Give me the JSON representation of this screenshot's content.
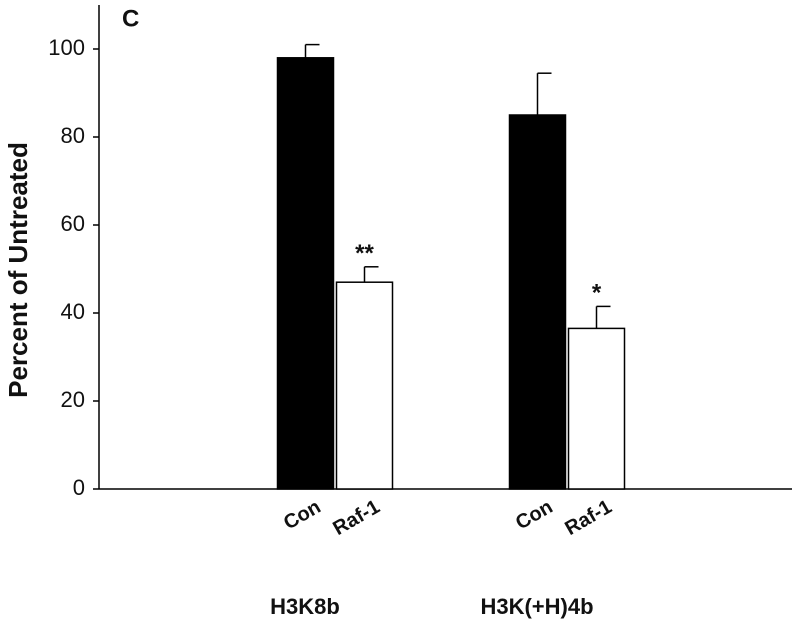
{
  "chart_data": {
    "type": "bar",
    "panel_label": "C",
    "y_label": "Percent of Untreated",
    "categories": [
      "H3K8b",
      "H3K(+H)4b"
    ],
    "series": [
      {
        "name": "Con",
        "color": "#000000",
        "values": [
          98,
          85
        ],
        "errors": [
          3,
          9.5
        ]
      },
      {
        "name": "Raf-1",
        "color": "#ffffff",
        "values": [
          47,
          36.5
        ],
        "errors": [
          3.5,
          5
        ],
        "labels": [
          "**",
          "*"
        ]
      }
    ],
    "ylim": [
      0,
      110
    ],
    "yticks": [
      0,
      20,
      40,
      60,
      80,
      100
    ]
  }
}
